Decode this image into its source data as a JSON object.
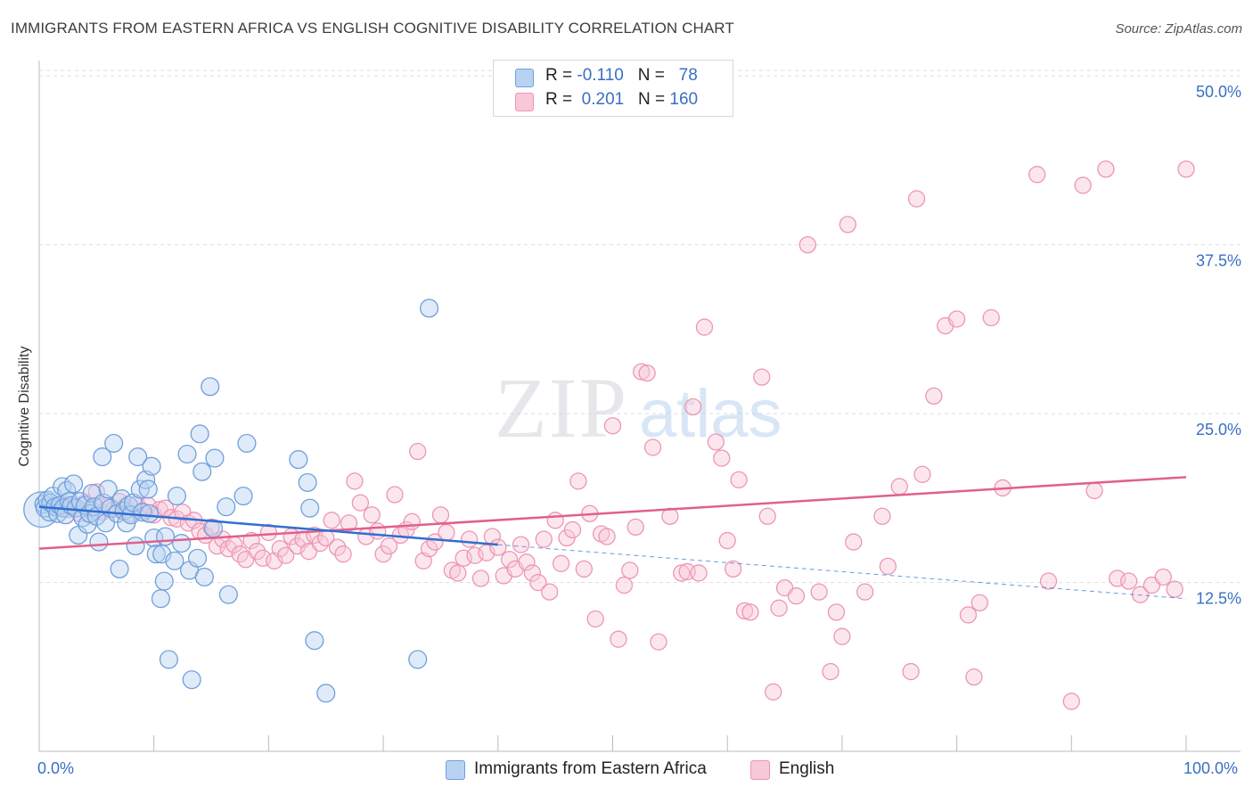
{
  "title": "IMMIGRANTS FROM EASTERN AFRICA VS ENGLISH COGNITIVE DISABILITY CORRELATION CHART",
  "source": "Source: ZipAtlas.com",
  "watermark": {
    "zip": "ZIP",
    "atlas": "atlas"
  },
  "colors": {
    "blue_fill": "#b8d2f2",
    "blue_stroke": "#6f9fdc",
    "blue_line": "#2f6fd0",
    "pink_fill": "#f8c8d8",
    "pink_stroke": "#ec96b4",
    "pink_line": "#e0608e",
    "axis_label": "#3a6fc4",
    "grid": "#dedede"
  },
  "legend": {
    "rows": [
      {
        "r_label": "R = ",
        "r_value": "-0.110",
        "n_label": "N = ",
        "n_value": "78"
      },
      {
        "r_label": "R = ",
        "r_value": "0.201",
        "n_label": "N = ",
        "n_value": "160"
      }
    ]
  },
  "chart_data": {
    "type": "scatter",
    "title": "IMMIGRANTS FROM EASTERN AFRICA VS ENGLISH COGNITIVE DISABILITY CORRELATION CHART",
    "xlabel": "",
    "ylabel": "Cognitive Disability",
    "xlim": [
      0,
      100
    ],
    "ylim": [
      0,
      51
    ],
    "x_tick_labels": {
      "min": "0.0%",
      "max": "100.0%"
    },
    "y_ticks": [
      {
        "value": 12.5,
        "label": "12.5%"
      },
      {
        "value": 25.0,
        "label": "25.0%"
      },
      {
        "value": 37.5,
        "label": "37.5%"
      },
      {
        "value": 50.0,
        "label": "50.0%"
      }
    ],
    "grid": "horizontal-dashed",
    "legend_position": "bottom-center",
    "series": [
      {
        "name": "Immigrants from Eastern Africa",
        "color": "#6f9fdc",
        "R": -0.11,
        "N": 78,
        "trend": {
          "x0": 0,
          "y0": 18.1,
          "x1": 40,
          "y1": 15.3,
          "dashed_to_x": 100,
          "dashed_to_y": 11.3
        },
        "points": [
          [
            0.2,
            17.9,
            2.2
          ],
          [
            0.4,
            18.3,
            1.1
          ],
          [
            0.5,
            18.0,
            1.1
          ],
          [
            0.7,
            18.6,
            1.1
          ],
          [
            0.9,
            17.7,
            1.1
          ],
          [
            1.0,
            18.4,
            1.1
          ],
          [
            1.2,
            18.9,
            1.1
          ],
          [
            1.4,
            18.1,
            1.1
          ],
          [
            1.6,
            17.6,
            1.1
          ],
          [
            1.8,
            18.2,
            1.1
          ],
          [
            2.0,
            19.6,
            1.1
          ],
          [
            2.1,
            18.0,
            1.1
          ],
          [
            2.3,
            17.5,
            1.1
          ],
          [
            2.4,
            19.3,
            1.1
          ],
          [
            2.6,
            18.5,
            1.1
          ],
          [
            2.8,
            18.2,
            1.1
          ],
          [
            3.0,
            19.8,
            1.1
          ],
          [
            3.2,
            18.0,
            1.1
          ],
          [
            3.4,
            16.0,
            1.1
          ],
          [
            3.6,
            18.5,
            1.1
          ],
          [
            3.8,
            17.3,
            1.1
          ],
          [
            4.0,
            18.2,
            1.1
          ],
          [
            4.2,
            16.8,
            1.1
          ],
          [
            4.4,
            17.6,
            1.1
          ],
          [
            4.6,
            19.1,
            1.1
          ],
          [
            4.8,
            18.1,
            1.1
          ],
          [
            5.0,
            17.4,
            1.1
          ],
          [
            5.2,
            15.5,
            1.1
          ],
          [
            5.5,
            21.8,
            1.1
          ],
          [
            5.6,
            18.4,
            1.1
          ],
          [
            5.8,
            16.9,
            1.1
          ],
          [
            6.0,
            19.4,
            1.1
          ],
          [
            6.2,
            18.0,
            1.1
          ],
          [
            6.5,
            22.8,
            1.1
          ],
          [
            6.8,
            17.6,
            1.1
          ],
          [
            7.0,
            13.5,
            1.1
          ],
          [
            7.2,
            18.7,
            1.1
          ],
          [
            7.4,
            17.8,
            1.1
          ],
          [
            7.6,
            16.9,
            1.1
          ],
          [
            7.8,
            18.2,
            1.1
          ],
          [
            8.0,
            17.5,
            1.1
          ],
          [
            8.2,
            18.4,
            1.1
          ],
          [
            8.4,
            15.2,
            1.1
          ],
          [
            8.6,
            21.8,
            1.1
          ],
          [
            8.8,
            19.4,
            1.1
          ],
          [
            9.0,
            17.7,
            1.1
          ],
          [
            9.3,
            20.1,
            1.1
          ],
          [
            9.5,
            19.4,
            1.1
          ],
          [
            9.6,
            17.6,
            1.1
          ],
          [
            9.8,
            21.1,
            1.1
          ],
          [
            10.0,
            15.8,
            1.1
          ],
          [
            10.2,
            14.6,
            1.1
          ],
          [
            10.6,
            11.3,
            1.1
          ],
          [
            10.7,
            14.6,
            1.1
          ],
          [
            10.9,
            12.6,
            1.1
          ],
          [
            11.0,
            15.9,
            1.1
          ],
          [
            11.3,
            6.8,
            1.1
          ],
          [
            11.8,
            14.1,
            1.1
          ],
          [
            12.0,
            18.9,
            1.1
          ],
          [
            12.4,
            15.4,
            1.1
          ],
          [
            12.9,
            22.0,
            1.1
          ],
          [
            13.1,
            13.4,
            1.1
          ],
          [
            13.3,
            5.3,
            1.1
          ],
          [
            13.8,
            14.3,
            1.1
          ],
          [
            14.0,
            23.5,
            1.1
          ],
          [
            14.2,
            20.7,
            1.1
          ],
          [
            14.4,
            12.9,
            1.1
          ],
          [
            14.9,
            27.0,
            1.1
          ],
          [
            15.2,
            16.5,
            1.1
          ],
          [
            15.3,
            21.7,
            1.1
          ],
          [
            16.3,
            18.1,
            1.1
          ],
          [
            16.5,
            11.6,
            1.1
          ],
          [
            17.8,
            18.9,
            1.1
          ],
          [
            18.1,
            22.8,
            1.1
          ],
          [
            22.6,
            21.6,
            1.1
          ],
          [
            23.4,
            19.9,
            1.1
          ],
          [
            23.6,
            18.0,
            1.1
          ],
          [
            24.0,
            8.2,
            1.1
          ],
          [
            25.0,
            4.3,
            1.1
          ],
          [
            33.0,
            6.8,
            1.1
          ],
          [
            34.0,
            32.8,
            1.1
          ]
        ]
      },
      {
        "name": "English",
        "color": "#ec96b4",
        "R": 0.201,
        "N": 160,
        "trend": {
          "x0": 0,
          "y0": 15.0,
          "x1": 100,
          "y1": 20.3
        },
        "points": [
          [
            1.5,
            18.0
          ],
          [
            2.0,
            18.3
          ],
          [
            2.5,
            17.9
          ],
          [
            3.0,
            18.1
          ],
          [
            3.5,
            17.6
          ],
          [
            4.0,
            18.4
          ],
          [
            4.5,
            18.0
          ],
          [
            5.0,
            19.2
          ],
          [
            5.5,
            17.7
          ],
          [
            6.0,
            18.2
          ],
          [
            6.5,
            17.9
          ],
          [
            7.0,
            18.5
          ],
          [
            7.5,
            18.1
          ],
          [
            8.0,
            17.6
          ],
          [
            8.5,
            18.3
          ],
          [
            9.0,
            17.8
          ],
          [
            9.5,
            18.2
          ],
          [
            10.0,
            17.5
          ],
          [
            10.5,
            17.9
          ],
          [
            11.0,
            18.0
          ],
          [
            11.5,
            17.3
          ],
          [
            12.0,
            17.2
          ],
          [
            12.5,
            17.7
          ],
          [
            13.0,
            16.9
          ],
          [
            13.5,
            17.1
          ],
          [
            14.0,
            16.3
          ],
          [
            14.5,
            16.0
          ],
          [
            15.0,
            16.6
          ],
          [
            15.5,
            15.2
          ],
          [
            16.0,
            15.7
          ],
          [
            16.5,
            15.0
          ],
          [
            17.0,
            15.3
          ],
          [
            17.5,
            14.6
          ],
          [
            18.0,
            14.2
          ],
          [
            18.5,
            15.6
          ],
          [
            19.0,
            14.8
          ],
          [
            19.5,
            14.3
          ],
          [
            20.0,
            16.2
          ],
          [
            20.5,
            14.1
          ],
          [
            21.0,
            15.0
          ],
          [
            21.5,
            14.5
          ],
          [
            22.0,
            15.9
          ],
          [
            22.5,
            15.2
          ],
          [
            23.0,
            15.7
          ],
          [
            23.5,
            14.8
          ],
          [
            24.0,
            16.0
          ],
          [
            24.5,
            15.4
          ],
          [
            25.0,
            15.8
          ],
          [
            25.5,
            17.1
          ],
          [
            26.0,
            15.1
          ],
          [
            26.5,
            14.6
          ],
          [
            27.0,
            16.9
          ],
          [
            27.5,
            20.0
          ],
          [
            28.0,
            18.4
          ],
          [
            28.5,
            15.9
          ],
          [
            29.0,
            17.5
          ],
          [
            29.5,
            16.3
          ],
          [
            30.0,
            14.6
          ],
          [
            30.5,
            15.2
          ],
          [
            31.0,
            19.0
          ],
          [
            31.5,
            16.0
          ],
          [
            32.0,
            16.4
          ],
          [
            32.5,
            17.0
          ],
          [
            33.0,
            22.2
          ],
          [
            33.5,
            14.1
          ],
          [
            34.0,
            15.0
          ],
          [
            34.5,
            15.5
          ],
          [
            35.0,
            17.5
          ],
          [
            35.5,
            16.2
          ],
          [
            36.0,
            13.4
          ],
          [
            36.5,
            13.2
          ],
          [
            37.0,
            14.3
          ],
          [
            37.5,
            15.7
          ],
          [
            38.0,
            14.5
          ],
          [
            38.5,
            12.8
          ],
          [
            39.0,
            14.7
          ],
          [
            39.5,
            15.9
          ],
          [
            40.0,
            15.1
          ],
          [
            40.5,
            13.0
          ],
          [
            41.0,
            14.2
          ],
          [
            41.5,
            13.5
          ],
          [
            42.0,
            15.3
          ],
          [
            42.5,
            14.0
          ],
          [
            43.0,
            13.2
          ],
          [
            43.5,
            12.5
          ],
          [
            44.0,
            15.7
          ],
          [
            44.5,
            11.8
          ],
          [
            45.0,
            17.1
          ],
          [
            45.5,
            13.9
          ],
          [
            46.0,
            15.8
          ],
          [
            46.5,
            16.4
          ],
          [
            47.0,
            20.0
          ],
          [
            47.5,
            13.5
          ],
          [
            48.0,
            17.6
          ],
          [
            48.5,
            9.8
          ],
          [
            49.0,
            16.1
          ],
          [
            49.5,
            15.9
          ],
          [
            50.0,
            24.1
          ],
          [
            50.5,
            8.3
          ],
          [
            51.0,
            12.3
          ],
          [
            51.5,
            13.4
          ],
          [
            52.0,
            16.6
          ],
          [
            52.5,
            28.1
          ],
          [
            53.0,
            28.0
          ],
          [
            53.5,
            22.5
          ],
          [
            54.0,
            8.1
          ],
          [
            55.0,
            17.4
          ],
          [
            56.0,
            13.2
          ],
          [
            56.5,
            13.3
          ],
          [
            57.0,
            25.5
          ],
          [
            57.5,
            13.2
          ],
          [
            58.0,
            31.4
          ],
          [
            59.0,
            22.9
          ],
          [
            59.5,
            21.7
          ],
          [
            60.0,
            15.6
          ],
          [
            60.5,
            13.5
          ],
          [
            61.0,
            20.1
          ],
          [
            61.5,
            10.4
          ],
          [
            62.0,
            10.3
          ],
          [
            63.0,
            27.7
          ],
          [
            63.5,
            17.4
          ],
          [
            64.0,
            4.4
          ],
          [
            64.5,
            10.6
          ],
          [
            65.0,
            12.1
          ],
          [
            66.0,
            11.5
          ],
          [
            67.0,
            37.5
          ],
          [
            68.0,
            11.8
          ],
          [
            69.0,
            5.9
          ],
          [
            69.5,
            10.3
          ],
          [
            70.0,
            8.5
          ],
          [
            70.5,
            39.0
          ],
          [
            71.0,
            15.5
          ],
          [
            72.0,
            11.8
          ],
          [
            73.5,
            17.4
          ],
          [
            74.0,
            13.7
          ],
          [
            75.0,
            19.6
          ],
          [
            76.0,
            5.9
          ],
          [
            76.5,
            40.9
          ],
          [
            77.0,
            20.5
          ],
          [
            78.0,
            26.3
          ],
          [
            79.0,
            31.5
          ],
          [
            80.0,
            32.0
          ],
          [
            81.0,
            10.1
          ],
          [
            81.5,
            5.5
          ],
          [
            82.0,
            11.0
          ],
          [
            83.0,
            32.1
          ],
          [
            84.0,
            19.5
          ],
          [
            87.0,
            42.7
          ],
          [
            88.0,
            12.6
          ],
          [
            90.0,
            3.7
          ],
          [
            91.0,
            41.9
          ],
          [
            92.0,
            19.3
          ],
          [
            93.0,
            43.1
          ],
          [
            94.0,
            12.8
          ],
          [
            95.0,
            12.6
          ],
          [
            96.0,
            11.6
          ],
          [
            97.0,
            12.3
          ],
          [
            98.0,
            12.9
          ],
          [
            99.0,
            12.0
          ],
          [
            100.0,
            43.1
          ]
        ]
      }
    ]
  },
  "bottom_legend": {
    "items": [
      {
        "label": "Immigrants from Eastern Africa"
      },
      {
        "label": "English"
      }
    ]
  }
}
